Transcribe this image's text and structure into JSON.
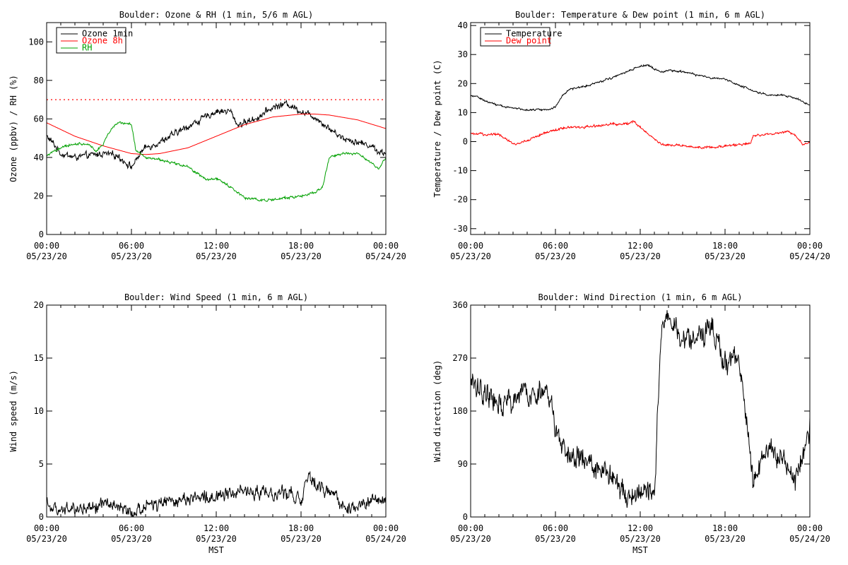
{
  "chart_data": [
    {
      "type": "line",
      "title": "Boulder: Ozone & RH (1 min, 5/6 m AGL)",
      "xlabel": "",
      "ylabel": "Ozone (ppbv) / RH (%)",
      "ylim": [
        0,
        110
      ],
      "yticks": [
        0,
        20,
        40,
        60,
        80,
        100
      ],
      "xlim": [
        0,
        24
      ],
      "xtick_labels": [
        [
          "00:00",
          "05/23/20"
        ],
        [
          "06:00",
          "05/23/20"
        ],
        [
          "12:00",
          "05/23/20"
        ],
        [
          "18:00",
          "05/23/20"
        ],
        [
          "00:00",
          "05/24/20"
        ]
      ],
      "grid": false,
      "legend": "top-left",
      "reference_line": {
        "y": 70,
        "color": "#ff0000",
        "style": "dotted"
      },
      "series": [
        {
          "name": "Ozone 1min",
          "color": "#000000",
          "noise": 2.5,
          "x": [
            0,
            0.5,
            1,
            2,
            3,
            4,
            5,
            5.5,
            6,
            6.3,
            6.6,
            7,
            8,
            9,
            10,
            11,
            12,
            13,
            13.5,
            14,
            15,
            16,
            17,
            18,
            19,
            19.5,
            20,
            21,
            22,
            23,
            23.5,
            24
          ],
          "y": [
            51,
            47,
            42,
            40,
            41,
            42,
            41,
            38,
            35,
            38,
            42,
            45,
            48,
            52,
            56,
            60,
            64,
            64,
            57,
            58,
            61,
            66,
            68,
            64,
            61,
            58,
            55,
            50,
            48,
            46,
            43,
            42
          ]
        },
        {
          "name": "Ozone 8h",
          "color": "#ff0000",
          "noise": 0,
          "x": [
            0,
            2,
            4,
            6,
            7,
            8,
            10,
            12,
            14,
            16,
            18,
            19,
            20,
            22,
            24
          ],
          "y": [
            58,
            51,
            46,
            42,
            41.5,
            42,
            45,
            51,
            57,
            61,
            62.5,
            62.5,
            62,
            59.5,
            55
          ]
        },
        {
          "name": "RH",
          "color": "#00a000",
          "noise": 1.0,
          "x": [
            0,
            1,
            2,
            3,
            3.5,
            4,
            4.5,
            5,
            5.5,
            6,
            6.3,
            7,
            8,
            9,
            10,
            11,
            11.5,
            12,
            13,
            14,
            15,
            16,
            17,
            18,
            19,
            19.5,
            20,
            21,
            22,
            23,
            23.5,
            24
          ],
          "y": [
            41,
            45,
            47,
            47,
            43,
            47,
            54,
            58,
            58,
            57,
            44,
            40,
            39,
            37,
            35,
            30,
            28,
            29,
            25,
            19,
            18,
            18,
            19,
            20,
            22,
            24,
            40,
            42,
            42,
            37,
            34,
            40
          ]
        }
      ]
    },
    {
      "type": "line",
      "title": "Boulder: Temperature & Dew point (1 min, 6 m AGL)",
      "xlabel": "",
      "ylabel": "Temperature / Dew point (C)",
      "ylim": [
        -32,
        41
      ],
      "yticks": [
        -30,
        -20,
        -10,
        0,
        10,
        20,
        30,
        40
      ],
      "xlim": [
        0,
        24
      ],
      "xtick_labels": [
        [
          "00:00",
          "05/23/20"
        ],
        [
          "06:00",
          "05/23/20"
        ],
        [
          "12:00",
          "05/23/20"
        ],
        [
          "18:00",
          "05/23/20"
        ],
        [
          "00:00",
          "05/24/20"
        ]
      ],
      "grid": false,
      "legend": "top-left",
      "series": [
        {
          "name": "Temperature",
          "color": "#000000",
          "noise": 0.5,
          "x": [
            0,
            0.5,
            1,
            2,
            3,
            4,
            5,
            5.5,
            6,
            6.5,
            7,
            8,
            9,
            10,
            11,
            12,
            12.5,
            13,
            13.5,
            14,
            15,
            16,
            17,
            18,
            19,
            20,
            21,
            22,
            23,
            24
          ],
          "y": [
            16,
            15.5,
            14,
            12.5,
            11.5,
            11,
            11,
            11,
            12,
            16,
            18,
            19,
            20.5,
            22,
            24,
            26,
            26.5,
            25,
            24,
            24.5,
            24,
            23,
            22,
            21.5,
            19.5,
            17.5,
            16,
            16,
            15,
            12.5
          ]
        },
        {
          "name": "Dew point",
          "color": "#ff0000",
          "noise": 0.6,
          "x": [
            0,
            1,
            2,
            2.8,
            3.2,
            4,
            5,
            6,
            7,
            8,
            9,
            10,
            11,
            11.5,
            12,
            13,
            13.5,
            14,
            15,
            16,
            17,
            18,
            19,
            19.8,
            20,
            21,
            22,
            22.5,
            23,
            23.5,
            24
          ],
          "y": [
            2.5,
            2.5,
            2.5,
            0,
            -1,
            0.5,
            2.5,
            4,
            5,
            5,
            5.5,
            6,
            6,
            7,
            5,
            1,
            -1,
            -1,
            -1.5,
            -2,
            -2,
            -1.5,
            -1,
            -0.5,
            2,
            2.5,
            3,
            3.5,
            2,
            -1,
            0
          ]
        }
      ]
    },
    {
      "type": "line",
      "title": "Boulder: Wind Speed (1 min, 6 m AGL)",
      "xlabel": "MST",
      "ylabel": "Wind speed (m/s)",
      "ylim": [
        0,
        20
      ],
      "yticks": [
        0,
        5,
        10,
        15,
        20
      ],
      "xlim": [
        0,
        24
      ],
      "xtick_labels": [
        [
          "00:00",
          "05/23/20"
        ],
        [
          "06:00",
          "05/23/20"
        ],
        [
          "12:00",
          "05/23/20"
        ],
        [
          "18:00",
          "05/23/20"
        ],
        [
          "00:00",
          "05/24/20"
        ]
      ],
      "grid": false,
      "legend": "none",
      "series": [
        {
          "name": "",
          "color": "#000000",
          "noise": 0.9,
          "floor": 0,
          "x": [
            0,
            0.5,
            1,
            2,
            3,
            4,
            5,
            6,
            6.5,
            7,
            8,
            9,
            10,
            11,
            12,
            13,
            14,
            15,
            16,
            17,
            18,
            18.5,
            19,
            20,
            21,
            22,
            23,
            24
          ],
          "y": [
            1.5,
            0.5,
            0.7,
            0.7,
            0.9,
            1.3,
            1.1,
            0.3,
            0.5,
            1,
            1.3,
            1.6,
            1.7,
            1.8,
            2,
            2.2,
            2.4,
            2.2,
            2.2,
            2.4,
            1.5,
            4,
            3,
            2.5,
            1,
            1.2,
            1.5,
            1.5
          ]
        }
      ]
    },
    {
      "type": "line",
      "title": "Boulder: Wind Direction (1 min, 6 m AGL)",
      "xlabel": "MST",
      "ylabel": "Wind direction (deg)",
      "ylim": [
        0,
        360
      ],
      "yticks": [
        0,
        90,
        180,
        270,
        360
      ],
      "xlim": [
        0,
        24
      ],
      "xtick_labels": [
        [
          "00:00",
          "05/23/20"
        ],
        [
          "06:00",
          "05/23/20"
        ],
        [
          "12:00",
          "05/23/20"
        ],
        [
          "18:00",
          "05/23/20"
        ],
        [
          "00:00",
          "05/24/20"
        ]
      ],
      "grid": false,
      "legend": "none",
      "series": [
        {
          "name": "",
          "color": "#000000",
          "noise": 30,
          "floor": 0,
          "ceil": 360,
          "x": [
            0,
            1,
            2,
            3,
            4,
            5,
            5.5,
            6,
            7,
            8,
            9,
            10,
            11,
            12,
            13,
            13.5,
            14,
            15,
            16,
            17,
            18,
            19,
            20,
            21,
            22,
            23,
            24
          ],
          "y": [
            230,
            210,
            190,
            200,
            210,
            215,
            205,
            150,
            100,
            100,
            80,
            70,
            40,
            40,
            40,
            330,
            340,
            300,
            300,
            320,
            270,
            270,
            60,
            120,
            100,
            60,
            150
          ]
        }
      ]
    }
  ]
}
